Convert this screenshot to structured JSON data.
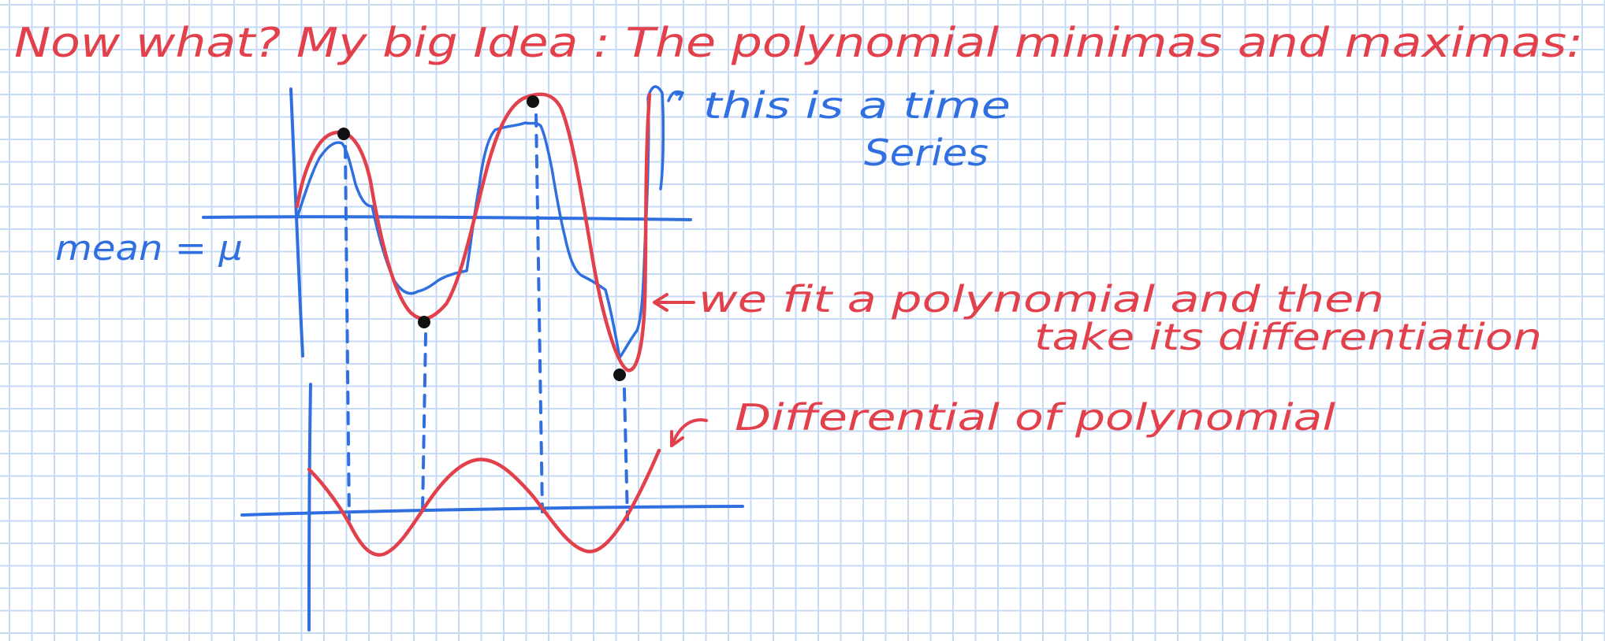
{
  "note": {
    "heading": "Now what? My big Idea : The polynomial minimas and maximas:",
    "label_time_series_line1": "this is a time",
    "label_time_series_line2": "Series",
    "label_mean": "mean = μ",
    "label_fit_line1": "we fit a polynomial and then",
    "label_fit_line2": "take its differentiation",
    "label_differential": "Differential of polynomial"
  },
  "colors": {
    "paper": "#ffffff",
    "grid": "#c7daf5",
    "ink_red": "#e2414c",
    "ink_blue": "#2f6fe0",
    "dot": "#111111"
  }
}
